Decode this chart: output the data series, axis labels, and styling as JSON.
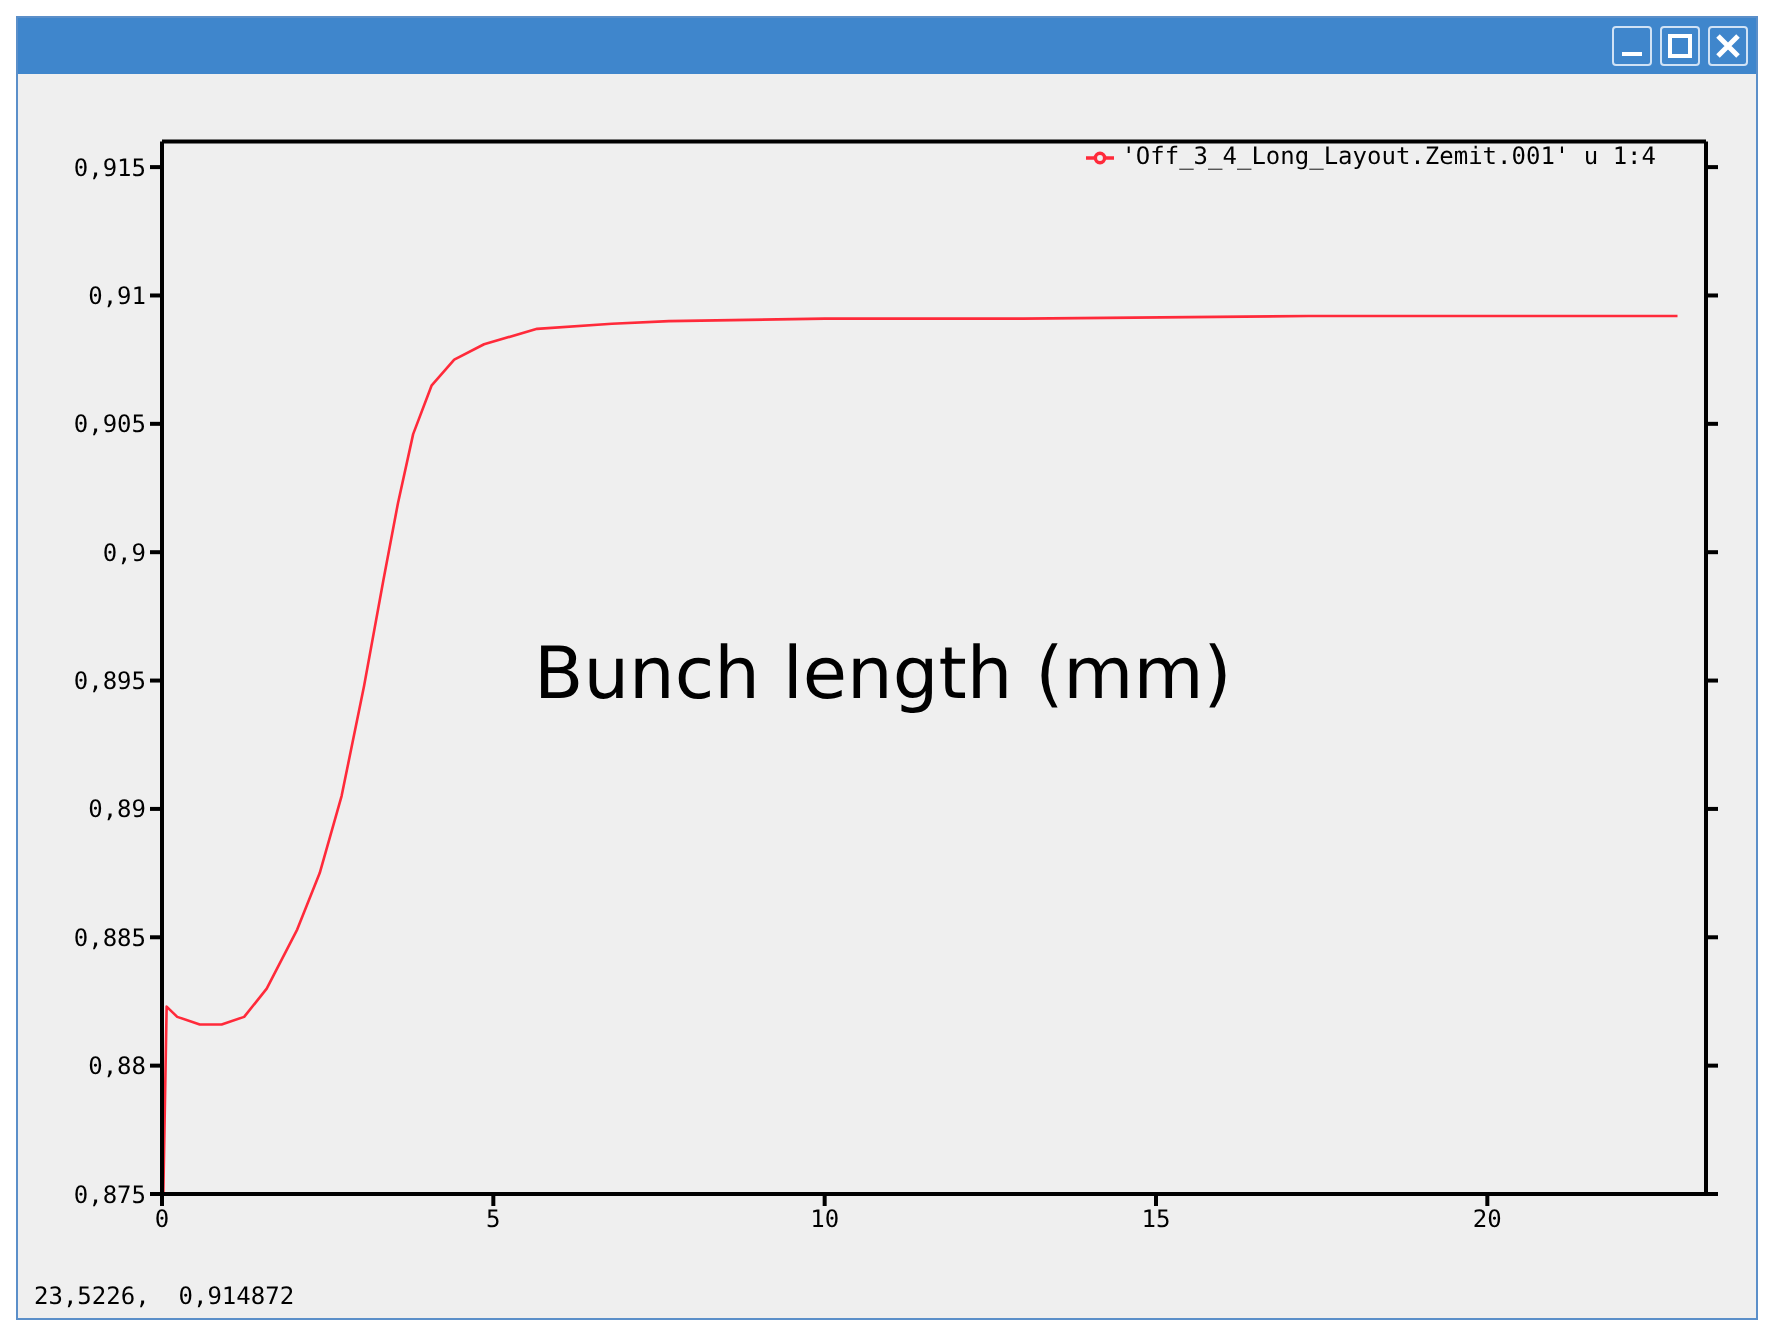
{
  "chart_data": {
    "type": "line",
    "legend": "top right",
    "marker": "none",
    "line_style": "solid",
    "grid": false,
    "annotations": [
      "Bunch length (mm)",
      "23,5226,  0,914872"
    ],
    "xlim": [
      0,
      23.3
    ],
    "xticks": [
      0,
      5,
      10,
      15,
      20
    ],
    "ylim": [
      0.875,
      0.916
    ],
    "yticks": [
      {
        "value": 0.875,
        "label": "0,875"
      },
      {
        "value": 0.88,
        "label": "0,88"
      },
      {
        "value": 0.885,
        "label": "0,885"
      },
      {
        "value": 0.89,
        "label": "0,89"
      },
      {
        "value": 0.895,
        "label": "0,895"
      },
      {
        "value": 0.9,
        "label": "0,9"
      },
      {
        "value": 0.905,
        "label": "0,905"
      },
      {
        "value": 0.91,
        "label": "0,91"
      },
      {
        "value": 0.915,
        "label": "0,915"
      }
    ],
    "series": [
      {
        "name": "'Off_3_4_Long_Layout.Zemit.001' u 1:4",
        "color": "#ff2a3a",
        "x": [
          0.02,
          0.07,
          0.23,
          0.57,
          0.9,
          1.24,
          1.58,
          2.04,
          2.38,
          2.71,
          3.05,
          3.34,
          3.56,
          3.79,
          4.07,
          4.41,
          4.86,
          5.66,
          6.79,
          7.65,
          10,
          13,
          17.3,
          22.87
        ],
        "values": [
          0.875,
          0.8823,
          0.8819,
          0.8816,
          0.8816,
          0.8819,
          0.883,
          0.8853,
          0.8875,
          0.8905,
          0.8948,
          0.8989,
          0.9019,
          0.9046,
          0.9065,
          0.9075,
          0.9081,
          0.9087,
          0.9089,
          0.909,
          0.9091,
          0.9091,
          0.9092,
          0.9092
        ]
      }
    ]
  }
}
